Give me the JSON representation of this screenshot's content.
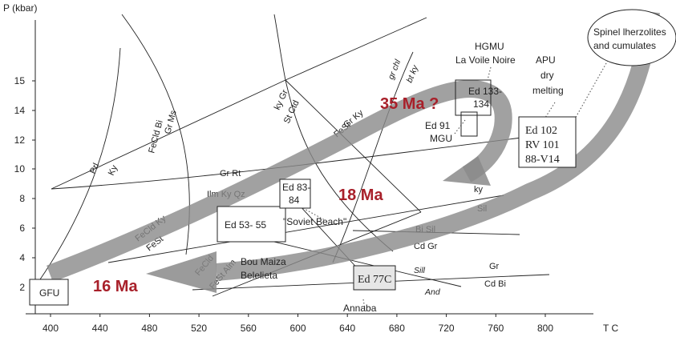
{
  "axes": {
    "y_title": "P (kbar)",
    "x_title": "T  C",
    "y_ticks": [
      "2",
      "4",
      "6",
      "8",
      "10",
      "12",
      "14",
      "15"
    ],
    "x_ticks": [
      "400",
      "440",
      "480",
      "520",
      "560",
      "600",
      "640",
      "680",
      "720",
      "760",
      "800"
    ]
  },
  "ages": {
    "a35": "35 Ma ?",
    "a18": "18 Ma",
    "a16": "16 Ma"
  },
  "boxes": {
    "gfu": "GFU",
    "ed53": "Ed 53- 55",
    "ed83_l1": "Ed 83-",
    "ed83_l2": "84",
    "ed77c": "Ed 77C",
    "ed133_l1": "Ed 133-",
    "ed133_l2": "134",
    "ed102_l1": "Ed 102",
    "ed102_l2": "RV 101",
    "ed102_l3": "88-V14"
  },
  "localities": {
    "soviet_beach": "\"Soviet Beach\"",
    "bou_maiza": "Bou Maiza",
    "belelieta": "Belelieta",
    "annaba": "Annaba",
    "ed91": "Ed 91",
    "mgu": "MGU",
    "hgmu": "HGMU",
    "la_voile_noire": "La Voile Noire",
    "apu": "APU",
    "dry": "dry",
    "melting": "melting",
    "spinel_l1": "Spinel lherzolites",
    "spinel_l2": "and cumulates"
  },
  "reactions": {
    "prl": "Prl",
    "ky": "Ky",
    "fecld_bi": "FeCld Bi",
    "gr_ms": "Gr Ms",
    "ky_gr": "ky Gr",
    "st_ctd": "St Ctd",
    "gr_ky": "Gr Ky",
    "fest_top": "FeSt",
    "gr_chl": "gr chl",
    "bt_ky": "bt ky",
    "gr_rt": "Gr Rt",
    "ilm_ky_qz": "Ilm Ky Qz",
    "fecld_ky": "FeCld Ky",
    "fest_low": "FeSt",
    "fecld_low": "FeCld",
    "fest_alm": "FeSt Alm",
    "ky_small": "ky",
    "sil": "Sil",
    "bi_sil": "Bi Sil",
    "cd_gr": "Cd  Gr",
    "sill": "Sill",
    "and": "And",
    "gr": "Gr",
    "cd_bi": "Cd Bi"
  }
}
